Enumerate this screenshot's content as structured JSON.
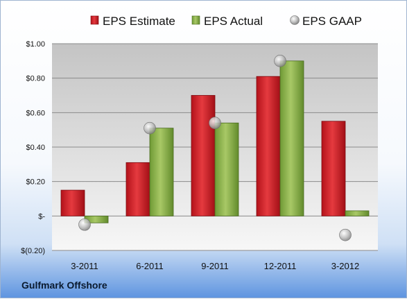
{
  "company": "Gulfmark Offshore",
  "chart_data": {
    "type": "bar",
    "categories": [
      "3-2011",
      "6-2011",
      "9-2011",
      "12-2011",
      "3-2012"
    ],
    "series": [
      {
        "name": "EPS Estimate",
        "values": [
          0.15,
          0.31,
          0.7,
          0.81,
          0.55
        ],
        "color": "#d42027",
        "kind": "bar"
      },
      {
        "name": "EPS Actual",
        "values": [
          -0.04,
          0.51,
          0.54,
          0.9,
          0.03
        ],
        "color": "#8db04a",
        "kind": "bar"
      },
      {
        "name": "EPS GAAP",
        "values": [
          -0.05,
          0.51,
          0.54,
          0.9,
          -0.11
        ],
        "color": "#a9a9a9",
        "kind": "marker"
      }
    ],
    "y_ticks": [
      {
        "value": 1.0,
        "label": "$1.00"
      },
      {
        "value": 0.8,
        "label": "$0.80"
      },
      {
        "value": 0.6,
        "label": "$0.60"
      },
      {
        "value": 0.4,
        "label": "$0.40"
      },
      {
        "value": 0.2,
        "label": "$0.20"
      },
      {
        "value": 0.0,
        "label": "$-"
      },
      {
        "value": -0.2,
        "label": "$(0.20)"
      }
    ],
    "ylim": [
      -0.2,
      1.0
    ],
    "grid": true,
    "legend_position": "top"
  }
}
